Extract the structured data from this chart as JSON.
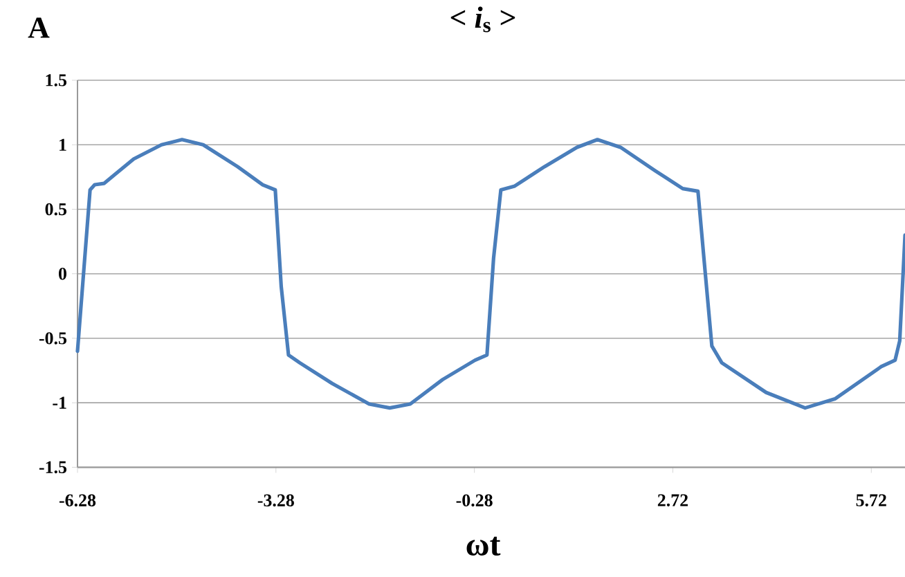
{
  "chart_data": {
    "type": "line",
    "title": "< *i*$_{s}$ >",
    "xlabel": "ωt",
    "ylabel": "A",
    "xlim": [
      -6.28,
      6.23
    ],
    "ylim": [
      -1.5,
      1.5
    ],
    "xticks": [
      -6.28,
      -3.28,
      -0.28,
      2.72,
      5.72
    ],
    "yticks": [
      -1.5,
      -1,
      -0.5,
      0,
      0.5,
      1,
      1.5
    ],
    "grid": "y",
    "marker": "none",
    "line_style": "solid",
    "series": [
      {
        "color": "#4a7ebb",
        "x": [
          -6.28,
          -6.09,
          -6.02,
          -5.88,
          -5.43,
          -5.01,
          -4.7,
          -4.38,
          -3.86,
          -3.48,
          -3.29,
          -3.2,
          -3.09,
          -2.92,
          -2.43,
          -1.87,
          -1.56,
          -1.25,
          -0.76,
          -0.27,
          -0.09,
          0.01,
          0.12,
          0.33,
          0.78,
          1.27,
          1.58,
          1.93,
          2.45,
          2.87,
          3.1,
          3.19,
          3.31,
          3.46,
          4.13,
          4.72,
          5.17,
          5.87,
          6.08,
          6.15,
          6.23
        ],
        "values": [
          -0.6,
          0.65,
          0.69,
          0.7,
          0.89,
          1.0,
          1.04,
          1.0,
          0.83,
          0.69,
          0.65,
          -0.1,
          -0.63,
          -0.69,
          -0.85,
          -1.01,
          -1.04,
          -1.01,
          -0.82,
          -0.67,
          -0.63,
          0.12,
          0.65,
          0.68,
          0.83,
          0.98,
          1.04,
          0.98,
          0.8,
          0.66,
          0.64,
          0.12,
          -0.56,
          -0.69,
          -0.92,
          -1.04,
          -0.97,
          -0.72,
          -0.67,
          -0.52,
          0.3
        ]
      }
    ]
  }
}
